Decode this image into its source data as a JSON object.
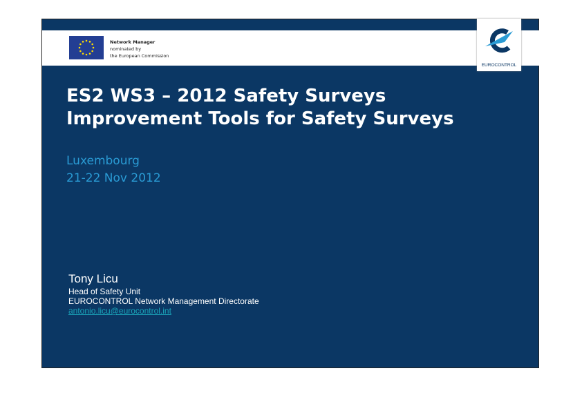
{
  "header": {
    "nm_lines": [
      "Network Manager",
      "nominated by",
      "the European Commission"
    ],
    "logo_text": "EUROCONTROL"
  },
  "title": {
    "line1": "ES2 WS3 – 2012 Safety Surveys",
    "line2": "Improvement Tools for Safety Surveys"
  },
  "event": {
    "location": "Luxembourg",
    "date": "21-22 Nov 2012"
  },
  "author": {
    "name": "Tony Licu",
    "role": "Head of Safety Unit",
    "org": "EUROCONTROL Network Management Directorate",
    "email": "antonio.licu@eurocontrol.int"
  },
  "colors": {
    "navy": "#0b3764",
    "accent": "#2a9bd4",
    "link": "#1aa3b8"
  }
}
